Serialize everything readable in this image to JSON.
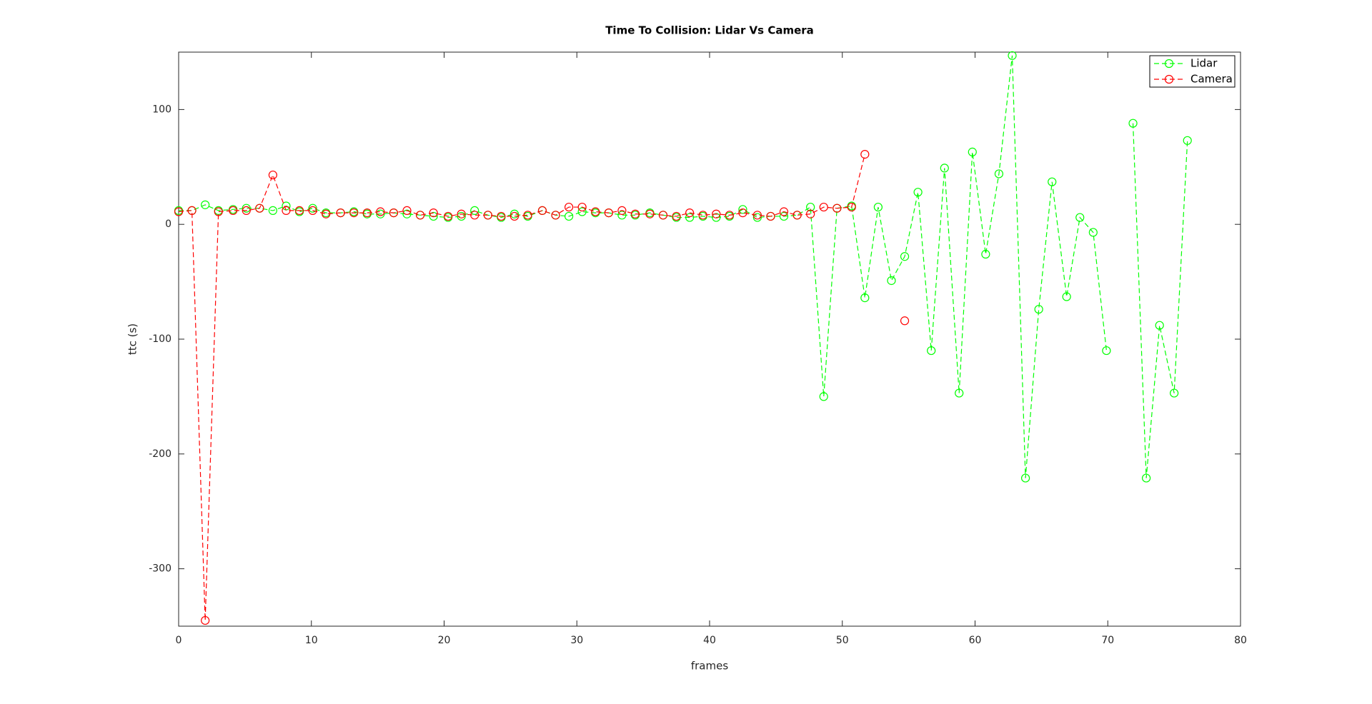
{
  "chart_data": {
    "type": "line",
    "title": "Time To Collision: Lidar Vs Camera",
    "x_label": "frames",
    "y_label": "ttc (s)",
    "x": [
      0,
      1.0,
      2.0,
      3.0,
      4.1,
      5.1,
      6.1,
      7.1,
      8.1,
      9.1,
      10.1,
      11.1,
      12.2,
      13.2,
      14.2,
      15.2,
      16.2,
      17.2,
      18.2,
      19.2,
      20.3,
      21.3,
      22.3,
      23.3,
      24.3,
      25.3,
      26.3,
      27.4,
      28.4,
      29.4,
      30.4,
      31.4,
      32.4,
      33.4,
      34.4,
      35.5,
      36.5,
      37.5,
      38.5,
      39.5,
      40.5,
      41.5,
      42.5,
      43.6,
      44.6,
      45.6,
      46.6,
      47.6,
      48.6,
      49.6,
      50.7,
      51.7,
      52.7,
      53.7,
      54.7,
      55.7,
      56.7,
      57.7,
      58.8,
      59.8,
      60.8,
      61.8,
      62.8,
      63.8,
      64.8,
      65.8,
      66.9,
      67.9,
      68.9,
      69.9,
      70.9,
      71.9,
      72.9,
      73.9,
      75.0,
      76.0
    ],
    "series": [
      {
        "name": "Lidar",
        "color": "#00ff00",
        "values": [
          12,
          12,
          17,
          12,
          13,
          14,
          14,
          12,
          16,
          11,
          14,
          10,
          10,
          11,
          9,
          9,
          10,
          9,
          8,
          7,
          6,
          7,
          12,
          8,
          6,
          9,
          7,
          12,
          8,
          7,
          11,
          10,
          10,
          8,
          8,
          10,
          8,
          6,
          6,
          7,
          6,
          7,
          13,
          6,
          7,
          7,
          8,
          15,
          -150,
          14,
          16,
          -64,
          15,
          -49,
          -28,
          28,
          -110,
          49,
          -147,
          63,
          -26,
          44,
          147,
          -221,
          -74,
          37,
          -63,
          6,
          -7,
          -110,
          null,
          88,
          -221,
          -88,
          -147,
          73
        ]
      },
      {
        "name": "Camera",
        "color": "#ff0000",
        "values": [
          11,
          12,
          -345,
          11,
          12,
          12,
          14,
          43,
          12,
          12,
          12,
          9,
          10,
          10,
          10,
          11,
          10,
          12,
          8,
          10,
          7,
          9,
          8,
          8,
          7,
          7,
          8,
          12,
          8,
          15,
          15,
          11,
          10,
          12,
          9,
          9,
          8,
          7,
          10,
          8,
          9,
          8,
          10,
          8,
          7,
          11,
          8,
          9,
          15,
          14,
          15,
          61,
          null,
          null,
          -84,
          null,
          null,
          null,
          null,
          null,
          null,
          null,
          null,
          null,
          null,
          null,
          null,
          null,
          null,
          null,
          null,
          null,
          null,
          null,
          null,
          null
        ]
      }
    ],
    "xlim": [
      0,
      80
    ],
    "xticks": [
      0,
      10,
      20,
      30,
      40,
      50,
      60,
      70,
      80
    ],
    "ylim": [
      -350,
      150
    ],
    "yticks": [
      -300,
      -200,
      -100,
      0,
      100
    ],
    "grid": false,
    "legend": "upper right"
  }
}
